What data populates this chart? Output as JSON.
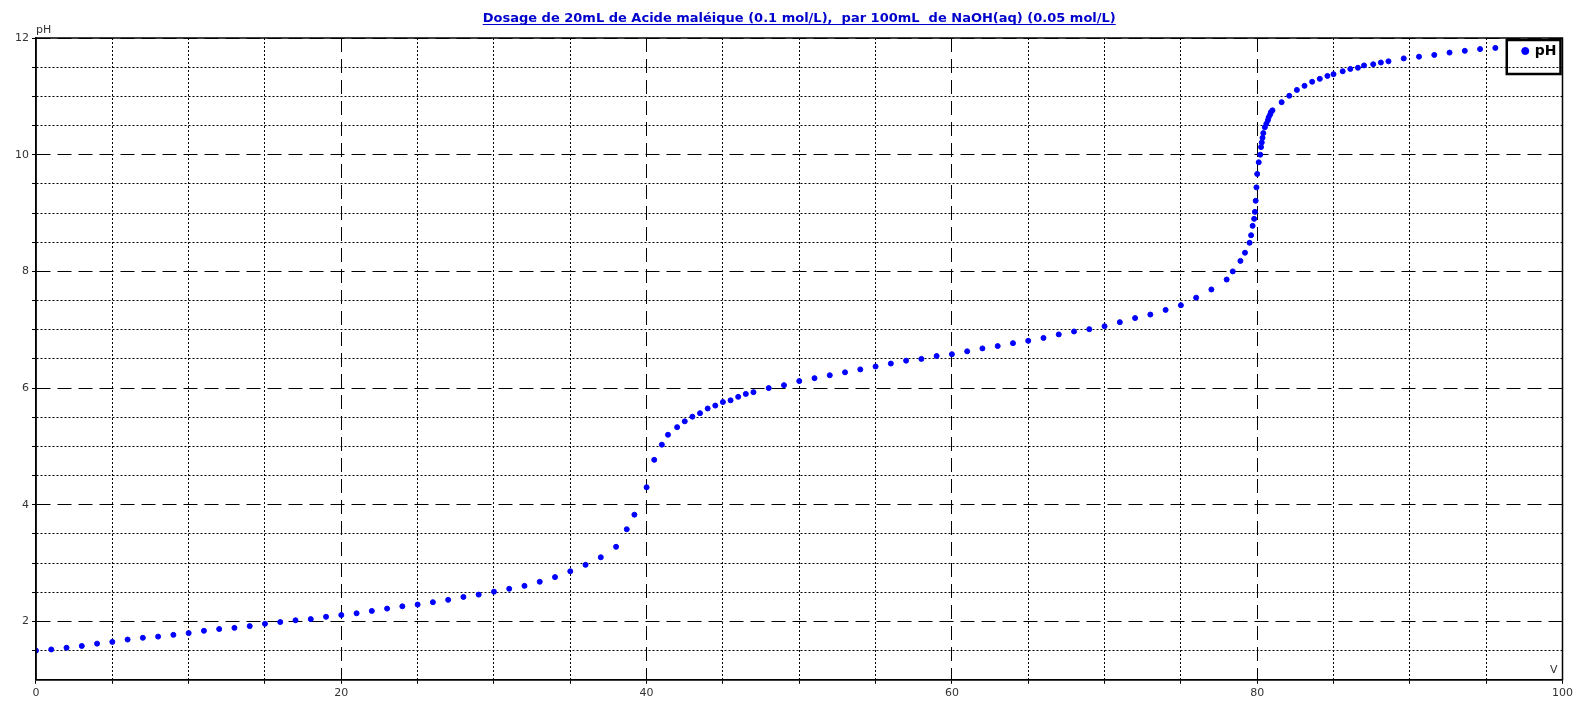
{
  "chart_data": {
    "type": "scatter",
    "title": "Dosage de 20mL de Acide maléique (0.1 mol/L),  par 100mL  de NaOH(aq) (0.05 mol/L)",
    "xlabel": "V",
    "ylabel": "pH",
    "xlim": [
      0,
      100
    ],
    "ylim": [
      1,
      12
    ],
    "xticks": [
      0,
      {
        "value": 5,
        "label": null
      },
      {
        "value": 10,
        "label": null
      },
      {
        "value": 15,
        "label": null
      },
      20,
      {
        "value": 25,
        "label": null
      },
      {
        "value": 30,
        "label": null
      },
      {
        "value": 35,
        "label": null
      },
      40,
      {
        "value": 45,
        "label": null
      },
      {
        "value": 50,
        "label": null
      },
      {
        "value": 55,
        "label": null
      },
      60,
      {
        "value": 65,
        "label": null
      },
      {
        "value": 70,
        "label": null
      },
      {
        "value": 75,
        "label": null
      },
      80,
      {
        "value": 85,
        "label": null
      },
      {
        "value": 90,
        "label": null
      },
      {
        "value": 95,
        "label": null
      },
      100
    ],
    "yticks": [
      {
        "value": 1.5,
        "label": null
      },
      2,
      {
        "value": 2.5,
        "label": null
      },
      {
        "value": 3,
        "label": null
      },
      {
        "value": 3.5,
        "label": null
      },
      4,
      {
        "value": 4.5,
        "label": null
      },
      {
        "value": 5,
        "label": null
      },
      {
        "value": 5.5,
        "label": null
      },
      6,
      {
        "value": 6.5,
        "label": null
      },
      {
        "value": 7,
        "label": null
      },
      {
        "value": 7.5,
        "label": null
      },
      8,
      {
        "value": 8.5,
        "label": null
      },
      {
        "value": 9,
        "label": null
      },
      {
        "value": 9.5,
        "label": null
      },
      10,
      {
        "value": 10.5,
        "label": null
      },
      {
        "value": 11,
        "label": null
      },
      {
        "value": 11.5,
        "label": null
      },
      12
    ],
    "grid": true,
    "legend": "top right",
    "marker": "circle",
    "series": [
      {
        "name": "pH",
        "color": "#0000ff",
        "x": [
          0,
          1,
          2,
          3,
          4,
          5,
          6,
          7,
          8,
          9,
          10,
          11,
          12,
          13,
          14,
          15,
          16,
          17,
          18,
          19,
          20,
          21,
          22,
          23,
          24,
          25,
          26,
          27,
          28,
          29,
          30,
          31,
          32,
          33,
          34,
          35,
          36,
          37,
          38,
          38.7,
          39.2,
          40,
          40.5,
          41,
          41.4,
          42,
          42.5,
          43,
          43.5,
          44,
          44.5,
          45,
          45.5,
          46,
          46.5,
          47,
          48,
          49,
          50,
          51,
          52,
          53,
          54,
          55,
          56,
          57,
          58,
          59,
          60,
          61,
          62,
          63,
          64,
          65,
          66,
          67,
          68,
          69,
          70,
          71,
          72,
          73,
          74,
          75,
          76,
          77,
          78,
          78.4,
          78.9,
          79.2,
          79.5,
          79.6,
          79.7,
          79.8,
          79.85,
          79.9,
          79.95,
          80,
          80.1,
          80.2,
          80.25,
          80.3,
          80.35,
          80.4,
          80.5,
          80.6,
          80.7,
          80.75,
          80.85,
          80.9,
          81,
          81.6,
          82.1,
          82.6,
          83.1,
          83.6,
          84.1,
          84.6,
          85,
          85.6,
          86.1,
          86.6,
          87,
          87.6,
          88.1,
          88.6,
          89.6,
          90.6,
          91.6,
          92.6,
          93.6,
          94.6,
          95.6
        ],
        "values": [
          1.5,
          1.52,
          1.55,
          1.58,
          1.62,
          1.65,
          1.69,
          1.72,
          1.74,
          1.77,
          1.8,
          1.84,
          1.87,
          1.89,
          1.92,
          1.96,
          1.99,
          2.02,
          2.04,
          2.08,
          2.11,
          2.14,
          2.18,
          2.22,
          2.26,
          2.29,
          2.33,
          2.37,
          2.42,
          2.46,
          2.51,
          2.56,
          2.61,
          2.68,
          2.76,
          2.86,
          2.97,
          3.1,
          3.28,
          3.58,
          3.83,
          4.3,
          4.77,
          5.03,
          5.2,
          5.33,
          5.43,
          5.51,
          5.57,
          5.65,
          5.7,
          5.76,
          5.79,
          5.85,
          5.9,
          5.93,
          6,
          6.05,
          6.12,
          6.17,
          6.22,
          6.27,
          6.32,
          6.37,
          6.42,
          6.47,
          6.5,
          6.55,
          6.58,
          6.63,
          6.68,
          6.72,
          6.77,
          6.81,
          6.86,
          6.92,
          6.97,
          7.01,
          7.06,
          7.13,
          7.2,
          7.26,
          7.34,
          7.42,
          7.55,
          7.69,
          7.86,
          8,
          8.18,
          8.32,
          8.49,
          8.62,
          8.78,
          8.9,
          9.02,
          9.21,
          9.44,
          9.67,
          9.87,
          10,
          10.13,
          10.21,
          10.29,
          10.37,
          10.47,
          10.53,
          10.59,
          10.64,
          10.69,
          10.73,
          10.76,
          10.9,
          11.01,
          11.11,
          11.18,
          11.25,
          11.3,
          11.35,
          11.38,
          11.43,
          11.47,
          11.49,
          11.53,
          11.55,
          11.58,
          11.6,
          11.65,
          11.68,
          11.71,
          11.75,
          11.78,
          11.81,
          11.83
        ]
      }
    ]
  }
}
